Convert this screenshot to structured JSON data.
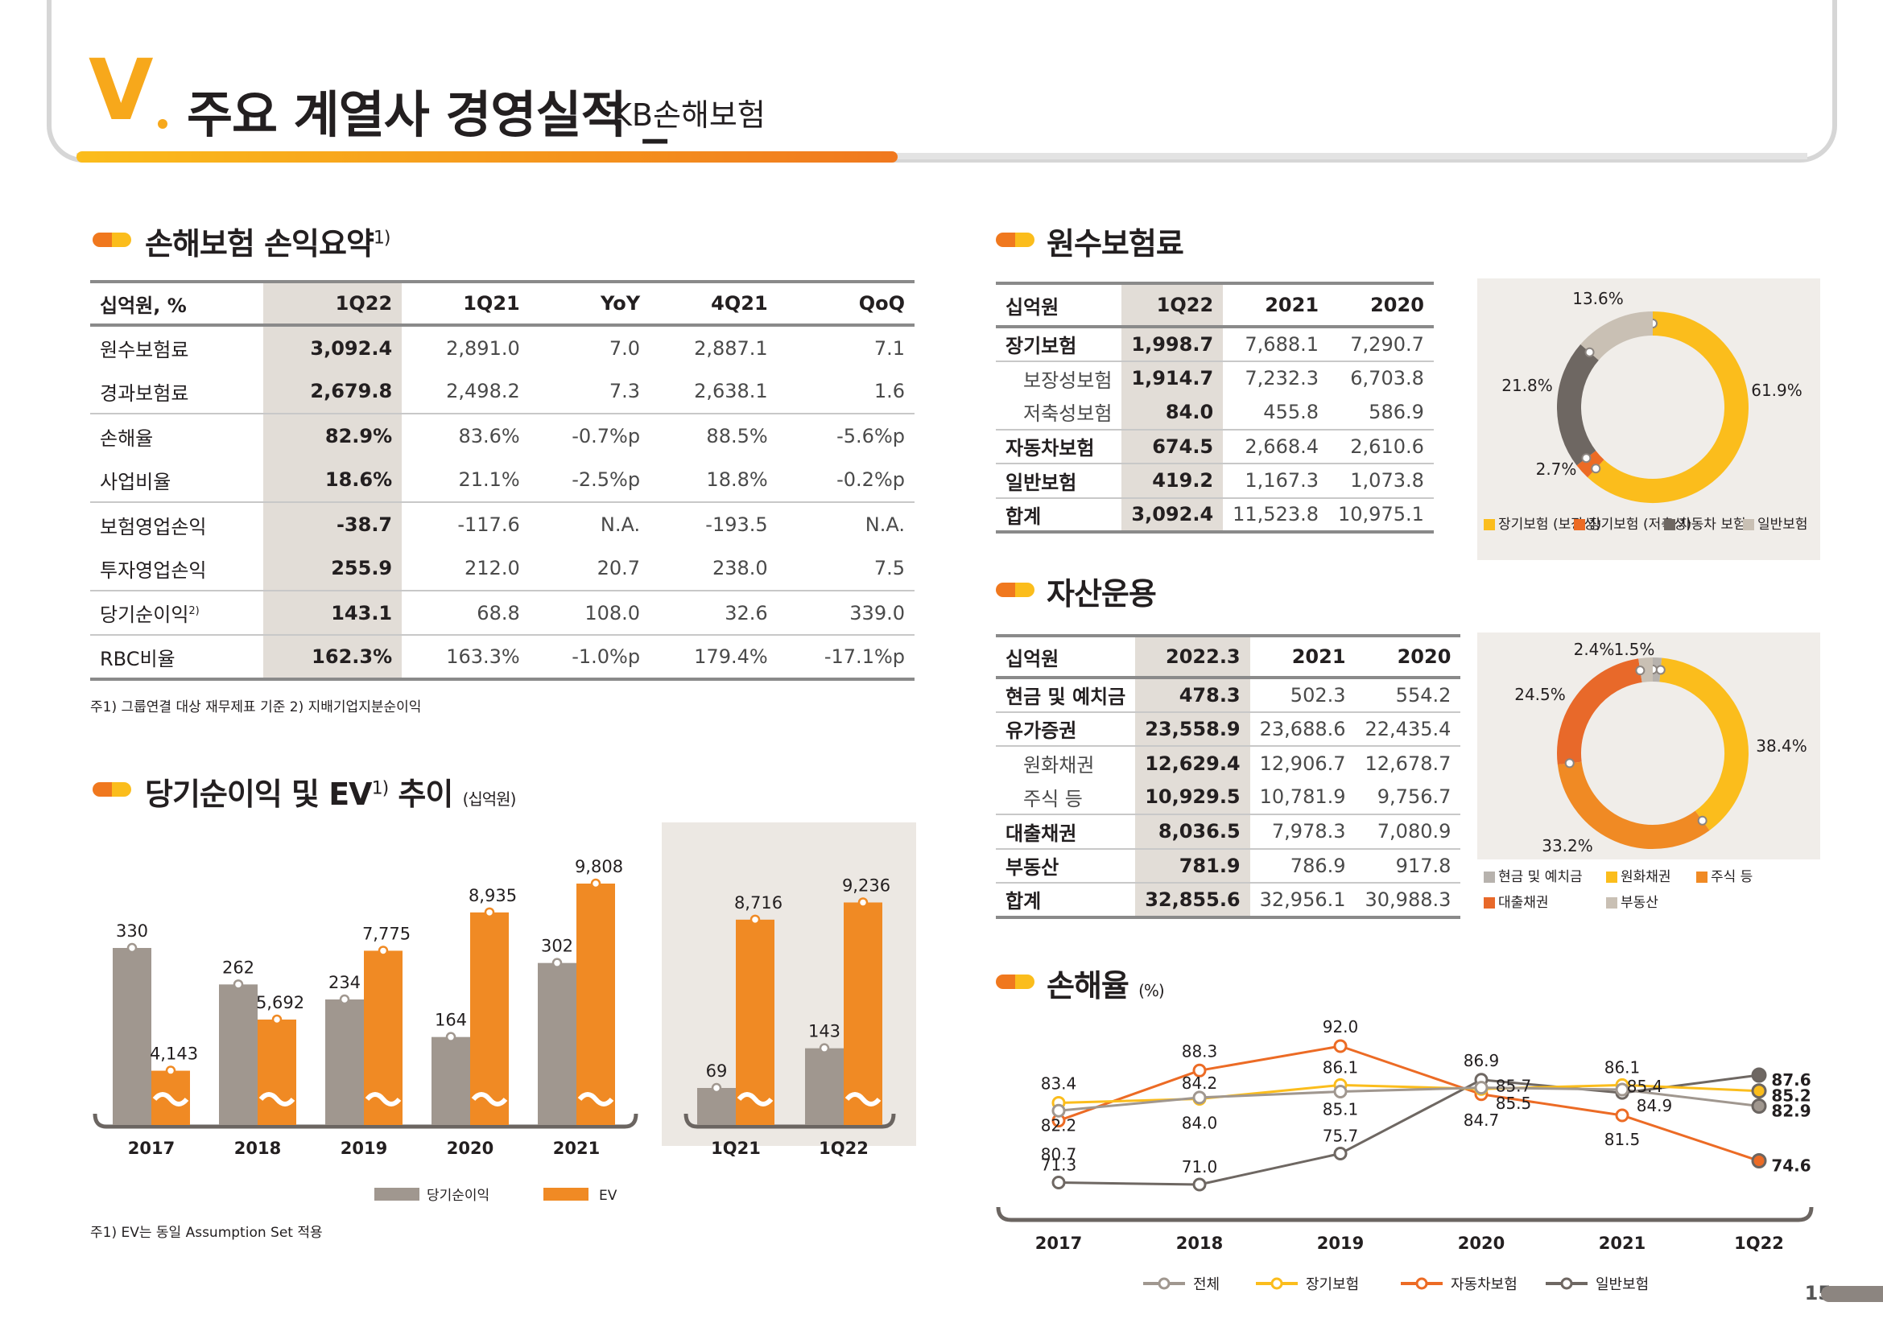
{
  "header": {
    "roman": "V",
    "title": "주요 계열사 경영실적 _",
    "subtitle": "KB손해보험"
  },
  "summary": {
    "title": "손해보험 손익요약",
    "title_sup": "1)",
    "columns": [
      "십억원, %",
      "1Q22",
      "1Q21",
      "YoY",
      "4Q21",
      "QoQ"
    ],
    "rows": [
      [
        "원수보험료",
        "3,092.4",
        "2,891.0",
        "7.0",
        "2,887.1",
        "7.1"
      ],
      [
        "경과보험료",
        "2,679.8",
        "2,498.2",
        "7.3",
        "2,638.1",
        "1.6"
      ],
      [
        "손해율",
        "82.9%",
        "83.6%",
        "-0.7%p",
        "88.5%",
        "-5.6%p"
      ],
      [
        "사업비율",
        "18.6%",
        "21.1%",
        "-2.5%p",
        "18.8%",
        "-0.2%p"
      ],
      [
        "보험영업손익",
        "-38.7",
        "-117.6",
        "N.A.",
        "-193.5",
        "N.A."
      ],
      [
        "투자영업손익",
        "255.9",
        "212.0",
        "20.7",
        "238.0",
        "7.5"
      ],
      [
        "당기순이익",
        "143.1",
        "68.8",
        "108.0",
        "32.6",
        "339.0"
      ],
      [
        "RBC비율",
        "162.3%",
        "163.3%",
        "-1.0%p",
        "179.4%",
        "-17.1%p"
      ]
    ],
    "net_income_sup": "2)",
    "note": "주1) 그룹연결 대상 재무제표 기준   2) 지배기업지분순이익"
  },
  "premium": {
    "title": "원수보험료",
    "columns": [
      "십억원",
      "1Q22",
      "2021",
      "2020"
    ],
    "rows": [
      [
        "장기보험",
        "1,998.7",
        "7,688.1",
        "7,290.7"
      ],
      [
        "보장성보험",
        "1,914.7",
        "7,232.3",
        "6,703.8"
      ],
      [
        "저축성보험",
        "84.0",
        "455.8",
        "586.9"
      ],
      [
        "자동차보험",
        "674.5",
        "2,668.4",
        "2,610.6"
      ],
      [
        "일반보험",
        "419.2",
        "1,167.3",
        "1,073.8"
      ],
      [
        "합계",
        "3,092.4",
        "11,523.8",
        "10,975.1"
      ]
    ]
  },
  "assets": {
    "title": "자산운용",
    "columns": [
      "십억원",
      "2022.3",
      "2021",
      "2020"
    ],
    "rows": [
      [
        "현금 및 예치금",
        "478.3",
        "502.3",
        "554.2"
      ],
      [
        "유가증권",
        "23,558.9",
        "23,688.6",
        "22,435.4"
      ],
      [
        "원화채권",
        "12,629.4",
        "12,906.7",
        "12,678.7"
      ],
      [
        "주식 등",
        "10,929.5",
        "10,781.9",
        "9,756.7"
      ],
      [
        "대출채권",
        "8,036.5",
        "7,978.3",
        "7,080.9"
      ],
      [
        "부동산",
        "781.9",
        "786.9",
        "917.8"
      ],
      [
        "합계",
        "32,855.6",
        "32,956.1",
        "30,988.3"
      ]
    ]
  },
  "ev_section": {
    "title": "당기순이익 및 EV",
    "title_sup": "1)",
    "title_suffix": "추이",
    "unit": "(십억원)",
    "note": "주1) EV는 동일 Assumption Set 적용"
  },
  "loss_section": {
    "title": "손해율",
    "unit": "(%)"
  },
  "page_number": "15",
  "chart_data": [
    {
      "type": "pie",
      "name": "premium-donut",
      "labels": [
        "장기보험(보장성)",
        "장기보험(저축성)",
        "자동차보험",
        "일반보험"
      ],
      "legend": [
        "장기보험\n(보장성)",
        "장기보험\n(저축성)",
        "자동차\n보험",
        "일반보험"
      ],
      "values": [
        61.9,
        2.7,
        21.8,
        13.6
      ],
      "value_labels": [
        "61.9%",
        "2.7%",
        "21.8%",
        "13.6%"
      ],
      "colors": [
        "#fbbd1c",
        "#ec6b25",
        "#6e6762",
        "#c9c0b4"
      ]
    },
    {
      "type": "pie",
      "name": "asset-donut",
      "labels": [
        "현금 및 예치금",
        "원화채권",
        "주식 등",
        "대출채권",
        "부동산"
      ],
      "values": [
        1.5,
        38.4,
        33.2,
        24.5,
        2.4
      ],
      "value_labels": [
        "1.5%",
        "38.4%",
        "33.2%",
        "24.5%",
        "2.4%"
      ],
      "colors": [
        "#b7b2ad",
        "#fbbd1c",
        "#f08a24",
        "#e8692a",
        "#c9c0b4"
      ]
    },
    {
      "type": "bar",
      "name": "net-income-ev-annual",
      "categories": [
        "2017",
        "2018",
        "2019",
        "2020",
        "2021"
      ],
      "series": [
        {
          "name": "당기순이익",
          "values": [
            330,
            262,
            234,
            164,
            302
          ],
          "labels": [
            "330",
            "262",
            "234",
            "164",
            "302"
          ],
          "color": "#a0978f"
        },
        {
          "name": "EV",
          "values": [
            4143,
            5692,
            7775,
            8935,
            9808
          ],
          "labels": [
            "4,143",
            "5,692",
            "7,775",
            "8,935",
            "9,808"
          ],
          "color": "#f08a24"
        }
      ]
    },
    {
      "type": "bar",
      "name": "net-income-ev-quarterly",
      "categories": [
        "1Q21",
        "1Q22"
      ],
      "series": [
        {
          "name": "당기순이익",
          "values": [
            69,
            143
          ],
          "labels": [
            "69",
            "143"
          ],
          "color": "#a0978f"
        },
        {
          "name": "EV",
          "values": [
            8716,
            9236
          ],
          "labels": [
            "8,716",
            "9,236"
          ],
          "color": "#f08a24"
        }
      ]
    },
    {
      "type": "line",
      "name": "loss-ratio",
      "categories": [
        "2017",
        "2018",
        "2019",
        "2020",
        "2021",
        "1Q22"
      ],
      "ylim": [
        70,
        93
      ],
      "series": [
        {
          "name": "전체",
          "values": [
            82.2,
            84.2,
            85.1,
            85.7,
            85.4,
            82.9
          ],
          "color": "#a0978f"
        },
        {
          "name": "장기보험",
          "values": [
            83.4,
            84.0,
            86.1,
            85.5,
            86.1,
            85.2
          ],
          "color": "#fbbd1c"
        },
        {
          "name": "자동차보험",
          "values": [
            80.7,
            88.3,
            92.0,
            84.7,
            81.5,
            74.6
          ],
          "color": "#ec6b25"
        },
        {
          "name": "일반보험",
          "values": [
            71.3,
            71.0,
            75.7,
            86.9,
            84.9,
            87.6
          ],
          "color": "#6e6762"
        }
      ]
    }
  ]
}
